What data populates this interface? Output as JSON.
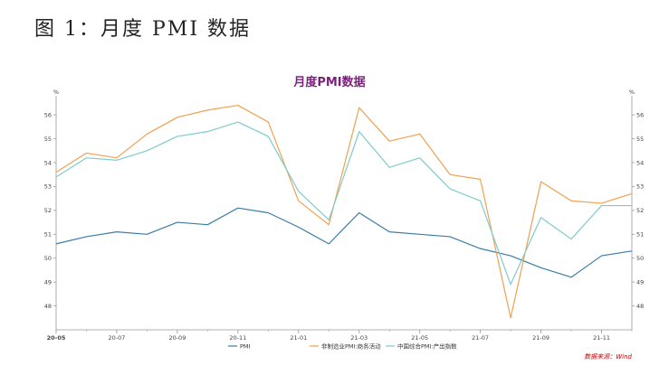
{
  "figure": {
    "caption": "图 1：月度 PMI 数据"
  },
  "source_note": "数据来源：Wind",
  "chart_data": {
    "type": "line",
    "title": "月度PMI数据",
    "left_unit": "%",
    "right_unit": "%",
    "ylim": [
      47,
      56.8
    ],
    "y_ticks": [
      48,
      49,
      50,
      51,
      52,
      53,
      54,
      55,
      56
    ],
    "x": [
      "20-05",
      "20-06",
      "20-07",
      "20-08",
      "20-09",
      "20-10",
      "20-11",
      "20-12",
      "21-01",
      "21-02",
      "21-03",
      "21-04",
      "21-05",
      "21-06",
      "21-07",
      "21-08",
      "21-09",
      "21-10",
      "21-11",
      "21-12"
    ],
    "x_tick_labels": [
      {
        "index": 0,
        "label": "20-05"
      },
      {
        "index": 2,
        "label": "20-07"
      },
      {
        "index": 4,
        "label": "20-09"
      },
      {
        "index": 6,
        "label": "20-11"
      },
      {
        "index": 8,
        "label": "21-01"
      },
      {
        "index": 10,
        "label": "21-03"
      },
      {
        "index": 12,
        "label": "21-05"
      },
      {
        "index": 14,
        "label": "21-07"
      },
      {
        "index": 16,
        "label": "21-09"
      },
      {
        "index": 18,
        "label": "21-11"
      }
    ],
    "legend_position": "bottom",
    "series": [
      {
        "name": "PMI",
        "color": "#3a7ca5",
        "values": [
          50.6,
          50.9,
          51.1,
          51.0,
          51.5,
          51.4,
          52.1,
          51.9,
          51.3,
          50.6,
          51.9,
          51.1,
          51.0,
          50.9,
          50.4,
          50.1,
          49.6,
          49.2,
          50.1,
          50.3
        ]
      },
      {
        "name": "非制造业PMI:商务活动",
        "color": "#f0a050",
        "values": [
          53.6,
          54.4,
          54.2,
          55.2,
          55.9,
          56.2,
          56.4,
          55.7,
          52.4,
          51.4,
          56.3,
          54.9,
          55.2,
          53.5,
          53.3,
          47.5,
          53.2,
          52.4,
          52.3,
          52.7
        ]
      },
      {
        "name": "中国综合PMI:产出指数",
        "color": "#7fcbcb",
        "values": [
          53.4,
          54.2,
          54.1,
          54.5,
          55.1,
          55.3,
          55.7,
          55.1,
          52.8,
          51.6,
          55.3,
          53.8,
          54.2,
          52.9,
          52.4,
          48.9,
          51.7,
          50.8,
          52.2,
          52.2
        ]
      }
    ]
  }
}
